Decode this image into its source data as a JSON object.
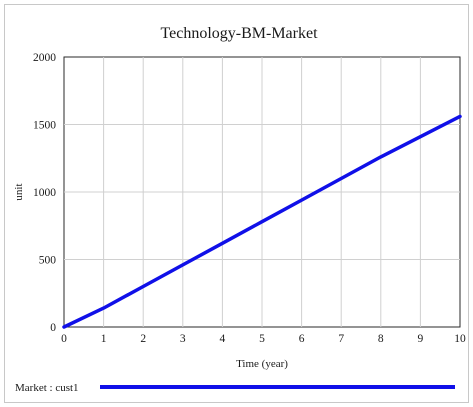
{
  "chart_data": {
    "type": "line",
    "title": "Technology-BM-Market",
    "xlabel": "Time (year)",
    "ylabel": "unit",
    "xlim": [
      0,
      10
    ],
    "ylim": [
      0,
      2000
    ],
    "x_ticks": [
      "0",
      "1",
      "2",
      "3",
      "4",
      "5",
      "6",
      "7",
      "8",
      "9",
      "10"
    ],
    "y_ticks": [
      "0",
      "500",
      "1000",
      "1500",
      "2000"
    ],
    "grid": true,
    "legend_position": "bottom",
    "series": [
      {
        "name": "Market : cust1",
        "color": "#1010e8",
        "x": [
          0,
          1,
          2,
          3,
          4,
          5,
          6,
          7,
          8,
          9,
          10
        ],
        "y": [
          0,
          140,
          300,
          460,
          620,
          780,
          940,
          1100,
          1260,
          1410,
          1560
        ]
      }
    ]
  }
}
